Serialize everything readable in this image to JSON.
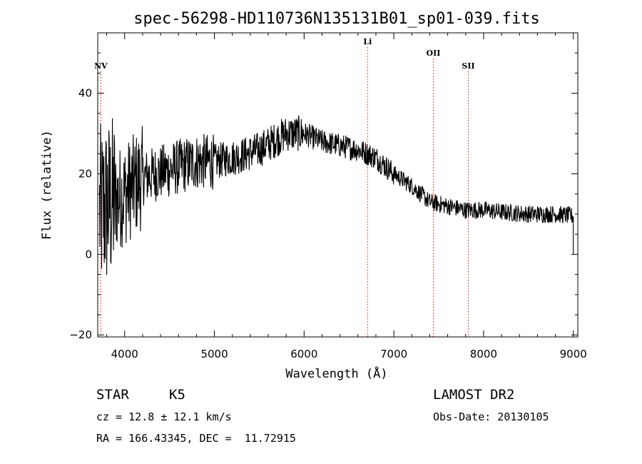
{
  "chart_data": {
    "type": "line",
    "title": "spec-56298-HD110736N135131B01_sp01-039.fits",
    "xlabel": "Wavelength (Å)",
    "ylabel": "Flux (relative)",
    "xlim": [
      3700,
      9050
    ],
    "ylim": [
      -20.5,
      55
    ],
    "xticks": [
      4000,
      5000,
      6000,
      7000,
      8000,
      9000
    ],
    "yticks": [
      -20,
      0,
      20,
      40
    ],
    "grid": false,
    "line_color": "#000000",
    "marker_color": "#ff0000",
    "lines": [
      {
        "name": "NV",
        "wavelength": 3735
      },
      {
        "name": "Li",
        "wavelength": 6708
      },
      {
        "name": "OII",
        "wavelength": 7440
      },
      {
        "name": "SII",
        "wavelength": 7830
      }
    ],
    "continuum": {
      "x": [
        3700,
        3800,
        4000,
        4200,
        4500,
        4800,
        5000,
        5300,
        5500,
        5800,
        6000,
        6200,
        6400,
        6600,
        6800,
        7000,
        7200,
        7400,
        7600,
        7800,
        8000,
        8200,
        8500,
        8800,
        9000
      ],
      "y": [
        10,
        12,
        15,
        19,
        21,
        23,
        23,
        24.5,
        26,
        30,
        30,
        28,
        27,
        26,
        24,
        20,
        17,
        13,
        12,
        11,
        11,
        10.5,
        10,
        10,
        9.5
      ]
    }
  },
  "info": {
    "object_class": "STAR",
    "subclass": "K5",
    "survey": "LAMOST DR2",
    "cz": "cz = 12.8 ± 12.1 km/s",
    "obs_date": "Obs-Date: 20130105",
    "radec": "RA = 166.43345, DEC =  11.72915"
  }
}
